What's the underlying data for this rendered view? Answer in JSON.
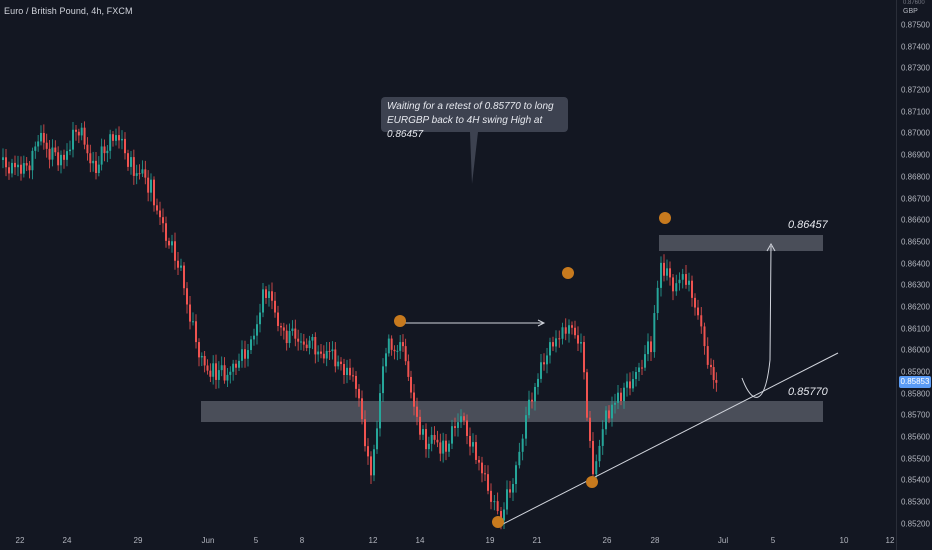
{
  "header": {
    "symbol_title": "Euro / British Pound, 4h, FXCM"
  },
  "price_axis": {
    "currency": "GBP",
    "top_partial_label": "0.87600",
    "ticks": [
      "0.87500",
      "0.87400",
      "0.87300",
      "0.87200",
      "0.87100",
      "0.87000",
      "0.86900",
      "0.86800",
      "0.86700",
      "0.86600",
      "0.86500",
      "0.86400",
      "0.86300",
      "0.86200",
      "0.86100",
      "0.86000",
      "0.85900",
      "0.85800",
      "0.85700",
      "0.85600",
      "0.85500",
      "0.85400",
      "0.85300",
      "0.85200"
    ],
    "current_price": "0.85853"
  },
  "time_axis": {
    "ticks": [
      "22",
      "24",
      "29",
      "Jun",
      "5",
      "8",
      "12",
      "14",
      "19",
      "21",
      "26",
      "28",
      "Jul",
      "5",
      "10",
      "12"
    ]
  },
  "annotations": {
    "callout_text": "Waiting for a retest of 0.85770 to long EURGBP back to 4H swing High at 0.86457",
    "resistance_label": "0.86457",
    "support_label": "0.85770"
  },
  "colors": {
    "background": "#131722",
    "bull_candle": "#26a69a",
    "bear_candle": "#ef5350",
    "zone_fill": "#787b86",
    "swing_marker": "#c77a1e",
    "current_price_tag": "#5b9cf6"
  }
}
